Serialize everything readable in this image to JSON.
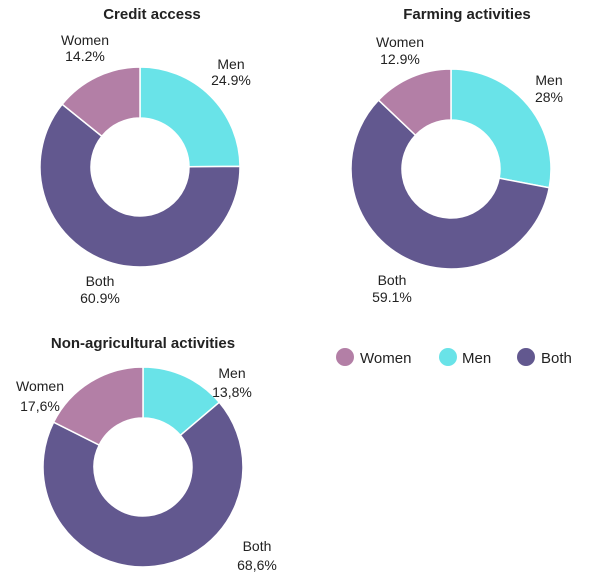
{
  "colors": {
    "Women": "#b37fa6",
    "Men": "#69e3e8",
    "Both": "#62588f"
  },
  "legend": {
    "items": [
      {
        "key": "Women",
        "label": "Women"
      },
      {
        "key": "Men",
        "label": "Men"
      },
      {
        "key": "Both",
        "label": "Both"
      }
    ]
  },
  "chart_data": [
    {
      "type": "pie",
      "subtype": "donut",
      "title": "Credit access",
      "slices": [
        {
          "key": "Men",
          "label": "Men",
          "value": 24.9,
          "display": "24.9%"
        },
        {
          "key": "Both",
          "label": "Both",
          "value": 60.9,
          "display": "60.9%"
        },
        {
          "key": "Women",
          "label": "Women",
          "value": 14.2,
          "display": "14.2%"
        }
      ]
    },
    {
      "type": "pie",
      "subtype": "donut",
      "title": "Farming activities",
      "slices": [
        {
          "key": "Men",
          "label": "Men",
          "value": 28,
          "display": "28%"
        },
        {
          "key": "Both",
          "label": "Both",
          "value": 59.1,
          "display": "59.1%"
        },
        {
          "key": "Women",
          "label": "Women",
          "value": 12.9,
          "display": "12.9%"
        }
      ]
    },
    {
      "type": "pie",
      "subtype": "donut",
      "title": "Non-agricultural activities",
      "slices": [
        {
          "key": "Men",
          "label": "Men",
          "value": 13.8,
          "display": "13,8%"
        },
        {
          "key": "Both",
          "label": "Both",
          "value": 68.6,
          "display": "68,6%"
        },
        {
          "key": "Women",
          "label": "Women",
          "value": 17.6,
          "display": "17,6%"
        }
      ]
    }
  ]
}
